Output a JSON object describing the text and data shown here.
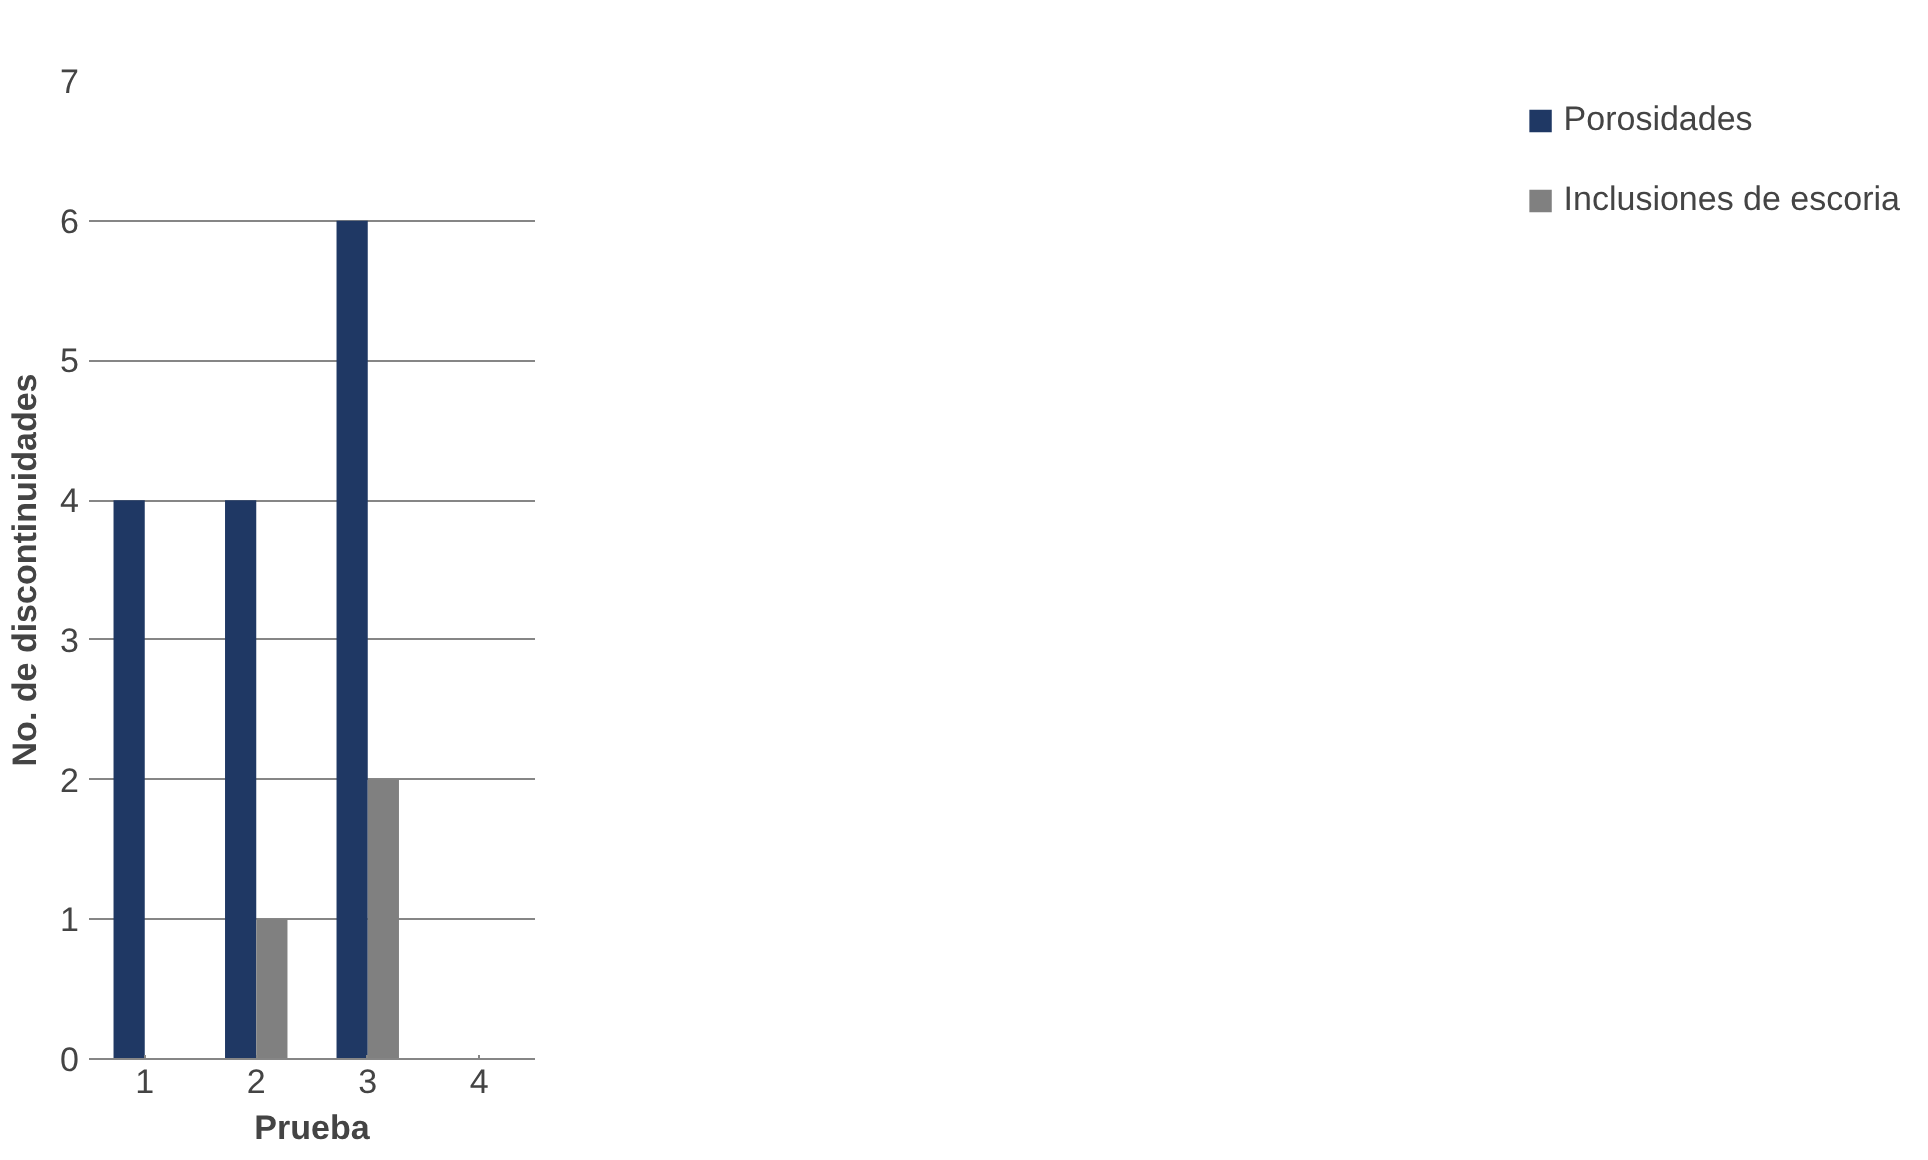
{
  "chart_data": {
    "type": "bar",
    "xlabel": "Prueba",
    "ylabel": "No. de discontinuidades",
    "categories": [
      "1",
      "2",
      "3",
      "4"
    ],
    "series": [
      {
        "name": "Porosidades",
        "color": "#1f3864",
        "values": [
          4,
          4,
          6,
          0
        ]
      },
      {
        "name": "Inclusiones de escoria",
        "color": "#808080",
        "values": [
          0,
          1,
          2,
          0
        ]
      }
    ],
    "ylim": [
      0,
      7
    ],
    "yticks": [
      0,
      1,
      2,
      3,
      4,
      5,
      6,
      7
    ],
    "grid": "y",
    "legend": "right"
  }
}
